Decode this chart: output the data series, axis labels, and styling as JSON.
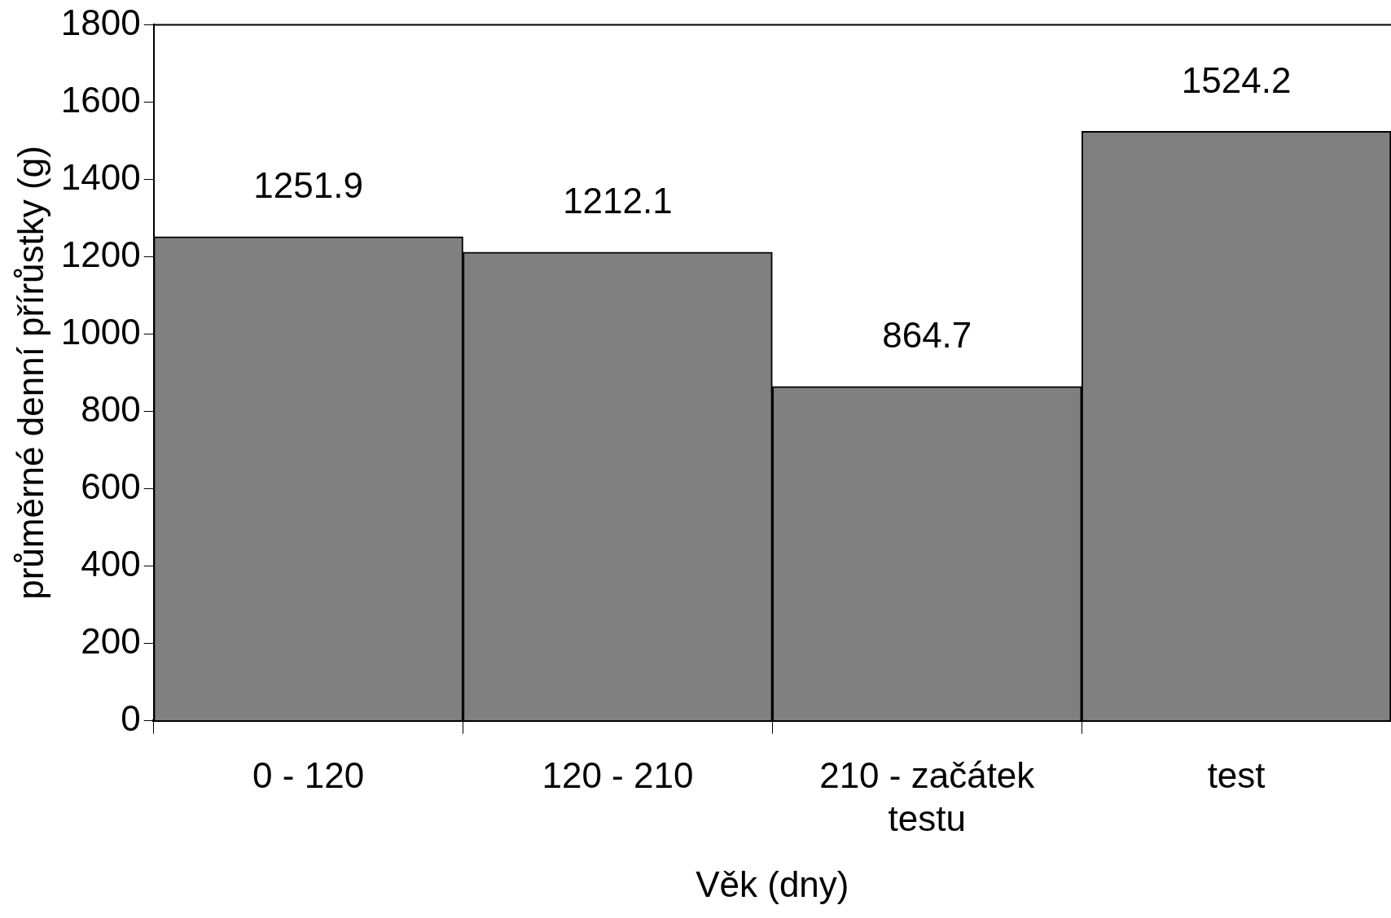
{
  "chart_data": {
    "type": "bar",
    "xlabel": "Věk (dny)",
    "ylabel": "průměrné denní přírůstky (g)",
    "categories": [
      "0 - 120",
      "120 - 210",
      "210 - začátek testu",
      "test"
    ],
    "values": [
      1251.9,
      1212.1,
      864.7,
      1524.2
    ],
    "color": "#808080",
    "ylim": [
      0,
      1800
    ],
    "yticks": [
      0,
      200,
      400,
      600,
      800,
      1000,
      1200,
      1400,
      1600,
      1800
    ],
    "data_labels": true,
    "grid": false,
    "legend": false
  }
}
